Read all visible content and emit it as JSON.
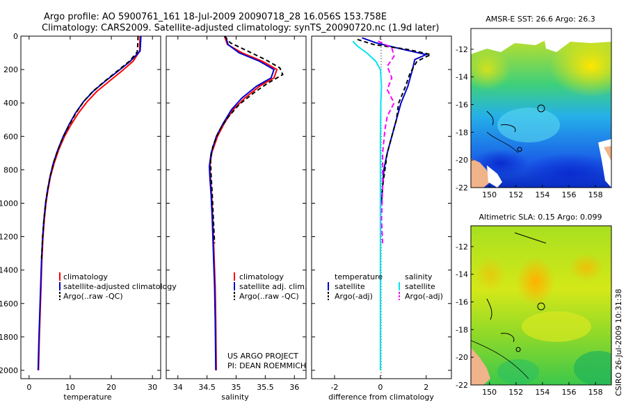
{
  "title_line1": "Argo profile: AO 5900761_161 18-Jul-2009 20090718_28 16.056S 153.758E",
  "title_line2": "Climatology: CARS2009. Satellite-adjusted climatology: synTS_20090720.nc (1.9d later)",
  "side_stamp": "CSIRO 26-Jul-2009 10:31:38",
  "project_line1": "US ARGO PROJECT",
  "project_line2": "PI: DEAN ROEMMICH",
  "colors": {
    "climatology": "#ff0000",
    "satellite": "#0000cc",
    "argo": "#000000",
    "salinity_sat": "#00e5ee",
    "salinity_argo": "#ff00ff"
  },
  "chart_data": [
    {
      "type": "line",
      "name": "temperature",
      "xlabel": "temperature",
      "ylabel": "",
      "xlim": [
        -2,
        32
      ],
      "ylim": [
        2050,
        0
      ],
      "xticks": [
        0,
        10,
        20,
        30
      ],
      "yticks": [
        0,
        200,
        400,
        600,
        800,
        1000,
        1200,
        1400,
        1600,
        1800,
        2000
      ],
      "legend": [
        "climatology",
        "satellite-adjusted climatology",
        "Argo(..raw -QC)"
      ],
      "series": [
        {
          "name": "climatology",
          "color": "#ff0000",
          "dash": "",
          "points": [
            [
              27.0,
              0
            ],
            [
              26.9,
              50
            ],
            [
              26.9,
              90
            ],
            [
              25.3,
              150
            ],
            [
              22.5,
              210
            ],
            [
              19.5,
              270
            ],
            [
              16.5,
              330
            ],
            [
              14.2,
              390
            ],
            [
              12.0,
              460
            ],
            [
              10.2,
              530
            ],
            [
              8.6,
              600
            ],
            [
              7.2,
              680
            ],
            [
              6.1,
              760
            ],
            [
              5.2,
              840
            ],
            [
              4.6,
              920
            ],
            [
              4.1,
              1000
            ],
            [
              3.7,
              1100
            ],
            [
              3.4,
              1200
            ],
            [
              3.1,
              1350
            ],
            [
              2.9,
              1500
            ],
            [
              2.7,
              1650
            ],
            [
              2.5,
              1800
            ],
            [
              2.3,
              2000
            ]
          ]
        },
        {
          "name": "satellite-adjusted climatology",
          "color": "#0000cc",
          "dash": "",
          "points": [
            [
              27.2,
              0
            ],
            [
              27.1,
              50
            ],
            [
              27.0,
              90
            ],
            [
              24.6,
              150
            ],
            [
              21.6,
              210
            ],
            [
              18.5,
              270
            ],
            [
              15.6,
              330
            ],
            [
              13.3,
              390
            ],
            [
              11.3,
              460
            ],
            [
              9.7,
              530
            ],
            [
              8.3,
              600
            ],
            [
              7.0,
              680
            ],
            [
              5.9,
              760
            ],
            [
              5.1,
              840
            ],
            [
              4.5,
              920
            ],
            [
              4.0,
              1000
            ],
            [
              3.6,
              1100
            ],
            [
              3.3,
              1200
            ],
            [
              3.0,
              1350
            ],
            [
              2.8,
              1500
            ],
            [
              2.6,
              1650
            ],
            [
              2.4,
              1800
            ],
            [
              2.2,
              2000
            ]
          ]
        },
        {
          "name": "Argo(..raw -QC)",
          "color": "#000000",
          "dash": "6,4",
          "points": [
            [
              26.5,
              0
            ],
            [
              26.4,
              60
            ],
            [
              26.3,
              95
            ],
            [
              24.4,
              150
            ],
            [
              21.4,
              210
            ],
            [
              18.4,
              270
            ],
            [
              15.5,
              330
            ],
            [
              13.3,
              390
            ],
            [
              11.4,
              460
            ],
            [
              9.8,
              530
            ],
            [
              8.4,
              600
            ],
            [
              7.0,
              680
            ],
            [
              5.9,
              760
            ],
            [
              5.1,
              840
            ],
            [
              4.5,
              920
            ],
            [
              4.0,
              1000
            ],
            [
              3.6,
              1100
            ],
            [
              3.3,
              1200
            ],
            [
              3.0,
              1340
            ]
          ]
        }
      ]
    },
    {
      "type": "line",
      "name": "salinity",
      "xlabel": "salinity",
      "xlim": [
        33.8,
        36.2
      ],
      "ylim": [
        2050,
        0
      ],
      "xticks": [
        34,
        34.5,
        35,
        35.5,
        36
      ],
      "legend": [
        "climatology",
        "satellite adj. clim.",
        "Argo(..raw -QC)"
      ],
      "series": [
        {
          "name": "climatology",
          "color": "#ff0000",
          "dash": "",
          "points": [
            [
              34.8,
              0
            ],
            [
              34.85,
              50
            ],
            [
              35.1,
              100
            ],
            [
              35.45,
              150
            ],
            [
              35.7,
              200
            ],
            [
              35.65,
              250
            ],
            [
              35.4,
              300
            ],
            [
              35.15,
              370
            ],
            [
              34.95,
              440
            ],
            [
              34.8,
              520
            ],
            [
              34.68,
              600
            ],
            [
              34.58,
              700
            ],
            [
              34.55,
              780
            ],
            [
              34.56,
              850
            ],
            [
              34.58,
              950
            ],
            [
              34.6,
              1100
            ],
            [
              34.62,
              1300
            ],
            [
              34.64,
              1500
            ],
            [
              34.65,
              1700
            ],
            [
              34.66,
              2000
            ]
          ]
        },
        {
          "name": "satellite adj. clim.",
          "color": "#0000cc",
          "dash": "",
          "points": [
            [
              34.82,
              0
            ],
            [
              34.86,
              50
            ],
            [
              35.05,
              100
            ],
            [
              35.4,
              150
            ],
            [
              35.65,
              200
            ],
            [
              35.6,
              250
            ],
            [
              35.35,
              300
            ],
            [
              35.1,
              370
            ],
            [
              34.92,
              440
            ],
            [
              34.78,
              520
            ],
            [
              34.66,
              600
            ],
            [
              34.57,
              700
            ],
            [
              34.54,
              780
            ],
            [
              34.55,
              850
            ],
            [
              34.57,
              950
            ],
            [
              34.59,
              1100
            ],
            [
              34.61,
              1300
            ],
            [
              34.63,
              1500
            ],
            [
              34.64,
              1700
            ],
            [
              34.65,
              2000
            ]
          ]
        },
        {
          "name": "Argo(..raw -QC)",
          "color": "#000000",
          "dash": "6,4",
          "points": [
            [
              34.8,
              0
            ],
            [
              34.9,
              40
            ],
            [
              35.2,
              90
            ],
            [
              35.5,
              140
            ],
            [
              35.75,
              190
            ],
            [
              35.8,
              230
            ],
            [
              35.55,
              280
            ],
            [
              35.3,
              340
            ],
            [
              35.05,
              410
            ],
            [
              34.85,
              490
            ],
            [
              34.7,
              570
            ],
            [
              34.6,
              660
            ],
            [
              34.56,
              740
            ],
            [
              34.57,
              830
            ],
            [
              34.59,
              950
            ],
            [
              34.61,
              1100
            ],
            [
              34.63,
              1240
            ]
          ]
        }
      ]
    },
    {
      "type": "line",
      "name": "difference",
      "xlabel": "difference from climatology",
      "xlim": [
        -3.0,
        3.1
      ],
      "ylim": [
        2050,
        0
      ],
      "xticks": [
        -2,
        0,
        2
      ],
      "legend": [
        "temperature",
        "salinity",
        "satellite",
        "Argo(-adj)",
        "satellite",
        "Argo(-adj)"
      ],
      "series": [
        {
          "name": "temperature satellite",
          "color": "#0000cc",
          "dash": "",
          "points": [
            [
              -0.8,
              10
            ],
            [
              -0.2,
              40
            ],
            [
              1.0,
              80
            ],
            [
              2.0,
              110
            ],
            [
              1.5,
              140
            ],
            [
              1.4,
              200
            ],
            [
              1.2,
              300
            ],
            [
              0.9,
              400
            ],
            [
              0.7,
              500
            ],
            [
              0.5,
              600
            ],
            [
              0.3,
              700
            ],
            [
              0.15,
              800
            ],
            [
              0.1,
              900
            ],
            [
              0.05,
              1000
            ]
          ]
        },
        {
          "name": "temperature Argo(-adj)",
          "color": "#000000",
          "dash": "6,4",
          "points": [
            [
              -1.0,
              20
            ],
            [
              -0.3,
              50
            ],
            [
              1.2,
              80
            ],
            [
              2.2,
              110
            ],
            [
              1.6,
              150
            ],
            [
              1.3,
              220
            ],
            [
              1.1,
              300
            ],
            [
              0.8,
              400
            ],
            [
              0.7,
              500
            ],
            [
              0.5,
              600
            ],
            [
              0.3,
              700
            ],
            [
              0.2,
              800
            ],
            [
              0.1,
              900
            ],
            [
              0.05,
              1000
            ]
          ]
        },
        {
          "name": "salinity satellite",
          "color": "#00e5ee",
          "dash": "",
          "points": [
            [
              -1.2,
              30
            ],
            [
              -1.0,
              60
            ],
            [
              -0.6,
              100
            ],
            [
              -0.2,
              150
            ],
            [
              0.0,
              200
            ],
            [
              0.05,
              300
            ],
            [
              0.02,
              400
            ],
            [
              0.0,
              600
            ],
            [
              0.0,
              800
            ],
            [
              0.0,
              1000
            ],
            [
              0.0,
              1200
            ],
            [
              0.0,
              1400
            ],
            [
              0.0,
              1600
            ],
            [
              0.0,
              1800
            ],
            [
              0.0,
              2000
            ]
          ]
        },
        {
          "name": "salinity Argo(-adj)",
          "color": "#ff00ff",
          "dash": "7,4",
          "points": [
            [
              -0.1,
              30
            ],
            [
              0.5,
              70
            ],
            [
              0.6,
              120
            ],
            [
              0.3,
              180
            ],
            [
              0.5,
              250
            ],
            [
              0.3,
              320
            ],
            [
              0.6,
              400
            ],
            [
              0.3,
              480
            ],
            [
              0.2,
              560
            ],
            [
              0.1,
              700
            ],
            [
              0.1,
              900
            ],
            [
              0.05,
              1100
            ],
            [
              0.1,
              1240
            ]
          ]
        }
      ]
    },
    {
      "type": "heatmap",
      "name": "sst_map",
      "title": "AMSR-E SST: 26.6  Argo: 26.3",
      "xlim": [
        148.6,
        159.2
      ],
      "ylim": [
        -22,
        -10.5
      ],
      "xticks": [
        150,
        152,
        154,
        156,
        158
      ],
      "yticks": [
        -12,
        -14,
        -16,
        -18,
        -20,
        -22
      ],
      "argo_position": [
        153.758,
        -16.056
      ]
    },
    {
      "type": "heatmap",
      "name": "sla_map",
      "title": "Altimetric SLA: 0.15  Argo: 0.099",
      "xlim": [
        148.6,
        159.2
      ],
      "ylim": [
        -22,
        -10.5
      ],
      "xticks": [
        150,
        152,
        154,
        156,
        158
      ],
      "yticks": [
        -12,
        -14,
        -16,
        -18,
        -20,
        -22
      ],
      "argo_position": [
        153.758,
        -16.056
      ]
    }
  ]
}
